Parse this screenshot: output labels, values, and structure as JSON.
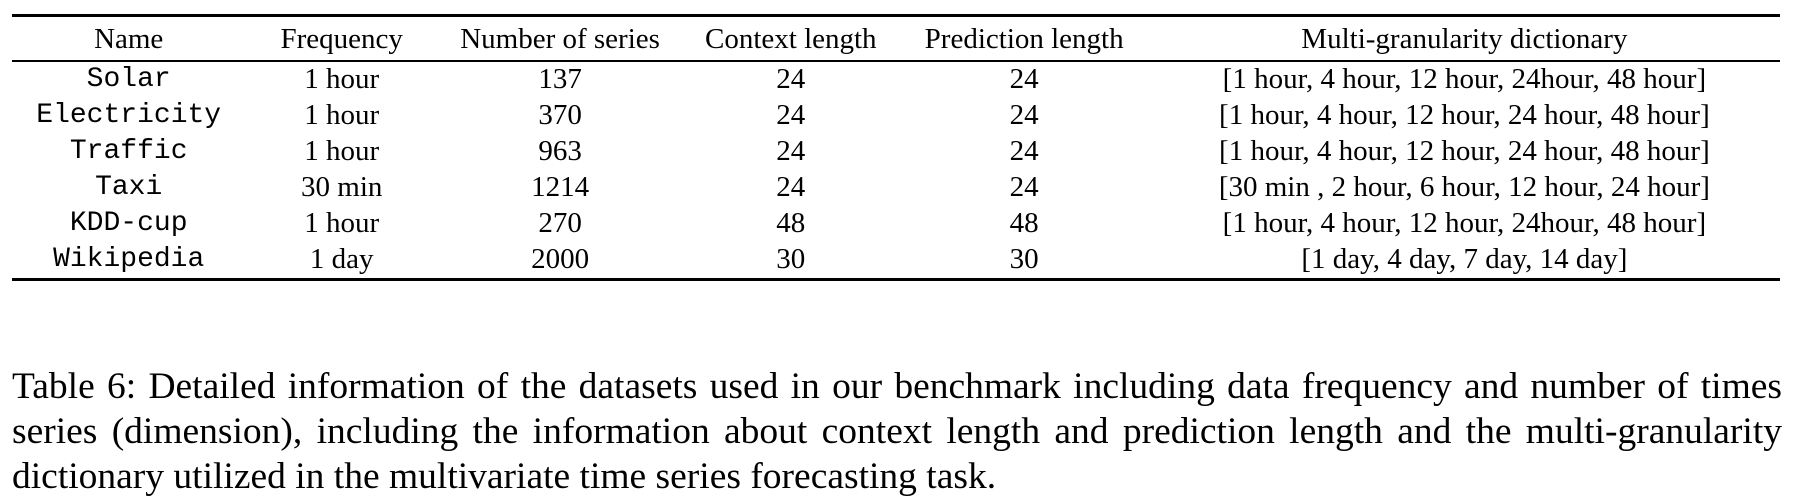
{
  "table": {
    "headers": [
      "Name",
      "Frequency",
      "Number of series",
      "Context length",
      "Prediction length",
      "Multi-granularity dictionary"
    ],
    "rows": [
      {
        "name": "Solar",
        "frequency": "1 hour",
        "series": "137",
        "context": "24",
        "prediction": "24",
        "dictionary": "[1 hour, 4 hour, 12 hour, 24hour, 48 hour]"
      },
      {
        "name": "Electricity",
        "frequency": "1 hour",
        "series": "370",
        "context": "24",
        "prediction": "24",
        "dictionary": "[1 hour, 4 hour, 12 hour, 24 hour, 48 hour]"
      },
      {
        "name": "Traffic",
        "frequency": "1 hour",
        "series": "963",
        "context": "24",
        "prediction": "24",
        "dictionary": "[1 hour, 4 hour, 12 hour, 24 hour, 48 hour]"
      },
      {
        "name": "Taxi",
        "frequency": "30 min",
        "series": "1214",
        "context": "24",
        "prediction": "24",
        "dictionary": "[30 min , 2 hour, 6 hour, 12 hour, 24 hour]"
      },
      {
        "name": "KDD-cup",
        "frequency": "1 hour",
        "series": "270",
        "context": "48",
        "prediction": "48",
        "dictionary": "[1 hour, 4 hour, 12 hour, 24hour, 48 hour]"
      },
      {
        "name": "Wikipedia",
        "frequency": "1 day",
        "series": "2000",
        "context": "30",
        "prediction": "30",
        "dictionary": "[1 day, 4 day, 7 day, 14 day]"
      }
    ]
  },
  "caption": "Table 6: Detailed information of the datasets used in our benchmark including data frequency and number of times series (dimension), including the information about context length and prediction length and the multi-granularity dictionary utilized in the multivariate time series forecasting task."
}
